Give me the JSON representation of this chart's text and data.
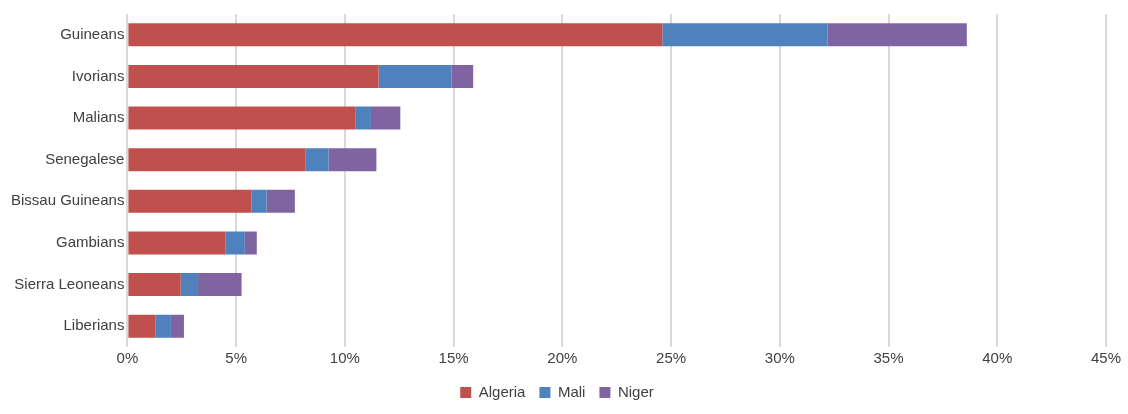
{
  "chart_data": {
    "type": "bar",
    "orientation": "horizontal",
    "stacked": true,
    "categories": [
      "Guineans",
      "Ivorians",
      "Malians",
      "Senegalese",
      "Bissau Guineans",
      "Gambians",
      "Sierra Leoneans",
      "Liberians"
    ],
    "series": [
      {
        "name": "Algeria",
        "color": "#c0504d",
        "values": [
          24.6,
          11.55,
          10.5,
          8.2,
          5.7,
          4.5,
          2.45,
          1.3
        ]
      },
      {
        "name": "Mali",
        "color": "#4f81bd",
        "values": [
          7.6,
          3.35,
          0.7,
          1.05,
          0.7,
          0.9,
          0.8,
          0.7
        ]
      },
      {
        "name": "Niger",
        "color": "#8064a2",
        "values": [
          6.4,
          1.0,
          1.35,
          2.2,
          1.3,
          0.55,
          2.0,
          0.6
        ]
      }
    ],
    "xlim": [
      0,
      45
    ],
    "xticks": [
      {
        "value": 0,
        "label": "0%"
      },
      {
        "value": 5,
        "label": "5%"
      },
      {
        "value": 10,
        "label": "10%"
      },
      {
        "value": 15,
        "label": "15%"
      },
      {
        "value": 20,
        "label": "20%"
      },
      {
        "value": 25,
        "label": "25%"
      },
      {
        "value": 30,
        "label": "30%"
      },
      {
        "value": 35,
        "label": "35%"
      },
      {
        "value": 40,
        "label": "40%"
      },
      {
        "value": 45,
        "label": "45%"
      }
    ],
    "grid": "x",
    "legend": "bottom"
  }
}
